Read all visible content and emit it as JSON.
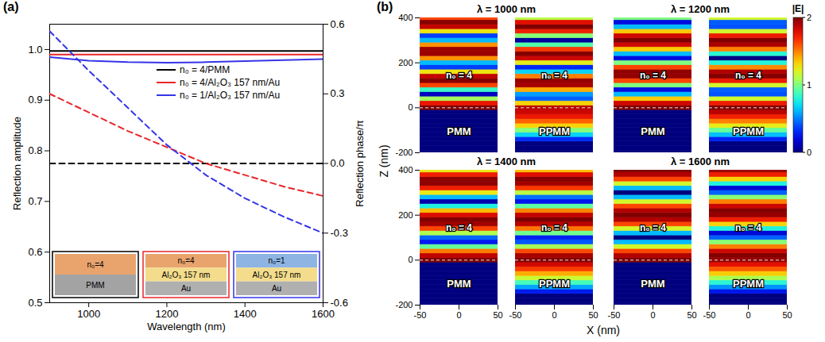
{
  "chart_data": [
    {
      "type": "line",
      "panel_label": "(a)",
      "xlabel": "Wavelength (nm)",
      "ylabel": "Reflection amplitude",
      "y2label": "Reflection phase/π",
      "x": [
        900,
        1000,
        1100,
        1200,
        1300,
        1400,
        1500,
        1600
      ],
      "xlim": [
        900,
        1600
      ],
      "xticks": [
        1000,
        1200,
        1400,
        1600
      ],
      "ylim": [
        0.5,
        1.05
      ],
      "yticks": [
        0.5,
        0.6,
        0.7,
        0.8,
        0.9,
        {
          "value": 1,
          "label": "1.0"
        }
      ],
      "y2lim": [
        -0.6,
        0.6
      ],
      "y2ticks": [
        -0.6,
        -0.3,
        {
          "value": 0,
          "label": "0.0"
        },
        0.3,
        0.6
      ],
      "legend": "upper right",
      "series": [
        {
          "name": "n₀ = 4/PMM",
          "color": "#000000",
          "line_style": "solid",
          "values": [
            0.997,
            0.997,
            0.997,
            0.997,
            0.997,
            0.997,
            0.997,
            0.997
          ]
        },
        {
          "name": "n₀ = 4/Al₂O₃ 157 nm/Au",
          "color": "#e8262a",
          "line_style": "solid",
          "values": [
            0.99,
            0.99,
            0.99,
            0.99,
            0.99,
            0.99,
            0.99,
            0.99
          ]
        },
        {
          "name": "n₀ = 1/Al₂O₃ 157 nm/Au",
          "color": "#3535e8",
          "line_style": "solid",
          "values": [
            0.985,
            0.978,
            0.975,
            0.974,
            0.975,
            0.977,
            0.979,
            0.981
          ]
        },
        {
          "name": "n₀ = 4/PMM",
          "color": "#000000",
          "line_style": "dashed",
          "axis": "y2",
          "values": [
            0,
            0,
            0,
            0,
            0,
            0,
            0,
            0
          ]
        },
        {
          "name": "n₀ = 4/Al₂O₃ 157 nm/Au",
          "color": "#e8262a",
          "line_style": "dashed",
          "axis": "y2",
          "values": [
            0.3,
            0.22,
            0.14,
            0.07,
            0.0,
            -0.05,
            -0.1,
            -0.14
          ]
        },
        {
          "name": "n₀ = 1/Al₂O₃ 157 nm/Au",
          "color": "#3535e8",
          "line_style": "dashed",
          "axis": "y2",
          "values": [
            0.57,
            0.4,
            0.24,
            0.08,
            -0.05,
            -0.15,
            -0.23,
            -0.3
          ]
        }
      ],
      "insets": [
        {
          "color": "#000000",
          "layers": [
            {
              "text": "n₀=4",
              "color": "#e9a46e"
            },
            {
              "text": "PMM",
              "color": "#a3a3a3"
            }
          ]
        },
        {
          "color": "#e8262a",
          "layers": [
            {
              "text": "n₀=4",
              "color": "#e9a46e"
            },
            {
              "text": "Al₂O₃ 157 nm",
              "color": "#f3dc8c"
            },
            {
              "text": "Au",
              "color": "#b0b0b0"
            }
          ]
        },
        {
          "color": "#3535e8",
          "layers": [
            {
              "text": "n₀=1",
              "color": "#8db4e2"
            },
            {
              "text": "Al₂O₃ 157 nm",
              "color": "#f3dc8c"
            },
            {
              "text": "Au",
              "color": "#b0b0b0"
            }
          ]
        }
      ]
    },
    {
      "type": "heatmap",
      "panel_label": "(b)",
      "xlabel": "X (nm)",
      "ylabel": "Z (nm)",
      "xlim": [
        -50,
        50
      ],
      "xticks": [
        -50,
        0,
        50
      ],
      "ylim": [
        -200,
        400
      ],
      "yticks": [
        -200,
        0,
        200,
        400
      ],
      "interface_z": 0,
      "colorbar": {
        "label": "|E|",
        "range": [
          0,
          2
        ],
        "ticks": [
          0,
          1,
          2
        ]
      },
      "z": [
        -200,
        -180,
        -160,
        -140,
        -120,
        -100,
        -80,
        -60,
        -40,
        -20,
        0,
        20,
        40,
        60,
        80,
        100,
        120,
        140,
        160,
        180,
        200,
        220,
        240,
        260,
        280,
        300,
        320,
        340,
        360,
        380,
        400
      ],
      "panels": [
        {
          "title": "λ = 1000 nm",
          "maps": [
            {
              "name": "PMM",
              "medium": "n₀ = 4",
              "values": [
                0,
                0,
                0,
                0,
                0,
                0,
                0,
                0,
                0,
                0,
                2,
                1.75,
                1.07,
                0.13,
                0.85,
                1.62,
                1.98,
                1.86,
                1.27,
                0.37,
                0.62,
                1.46,
                1.94,
                1.94,
                1.46,
                0.62,
                0.37,
                1.27,
                1.86,
                1.98,
                1.62
              ]
            },
            {
              "name": "PPMM",
              "medium": "n₀ = 4",
              "values": [
                0,
                0,
                0,
                0.32,
                0.68,
                1.02,
                1.32,
                1.56,
                1.74,
                1.84,
                1.88,
                1.32,
                0.44,
                0.56,
                1.41,
                1.92,
                1.95,
                1.5,
                0.68,
                0.31,
                1.23,
                1.84,
                1.99,
                1.65,
                0.91,
                0.06,
                1.02,
                1.72,
                2,
                1.78,
                1.12
              ]
            }
          ]
        },
        {
          "title": "λ = 1200 nm",
          "maps": [
            {
              "name": "PMM",
              "medium": "n₀ = 4",
              "values": [
                0,
                0,
                0,
                0,
                0,
                0,
                0,
                0,
                0,
                0,
                2,
                1.83,
                1.34,
                0.62,
                0.21,
                1.0,
                1.62,
                1.96,
                1.96,
                1.62,
                1.0,
                0.21,
                0.62,
                1.34,
                1.83,
                2,
                1.83,
                1.34,
                0.62,
                0.21,
                1.0
              ]
            },
            {
              "name": "PPMM",
              "medium": "n₀ = 4",
              "values": [
                0,
                0,
                0,
                0.29,
                0.63,
                0.95,
                1.24,
                1.5,
                1.71,
                1.88,
                1.99,
                1.73,
                1.17,
                0.41,
                0.43,
                1.18,
                1.74,
                1.99,
                1.9,
                1.48,
                0.8,
                0.01,
                0.82,
                1.49,
                1.91,
                1.99,
                1.73,
                1.17,
                0.41,
                0.43,
                1.18
              ]
            }
          ]
        },
        {
          "title": "λ = 1400 nm",
          "maps": [
            {
              "name": "PMM",
              "medium": "n₀ = 4",
              "values": [
                0,
                0,
                0,
                0,
                0,
                0,
                0,
                0,
                0,
                0,
                2,
                1.87,
                1.51,
                0.95,
                0.27,
                0.45,
                1.1,
                1.62,
                1.93,
                1.99,
                1.8,
                1.38,
                0.78,
                0.09,
                0.62,
                1.25,
                1.72,
                1.97,
                1.97,
                1.72,
                1.25
              ]
            },
            {
              "name": "PPMM",
              "medium": "n₀ = 4",
              "values": [
                0,
                0,
                0,
                0.27,
                0.58,
                0.88,
                1.16,
                1.41,
                1.64,
                1.83,
                1.99,
                1.92,
                1.61,
                1.08,
                0.42,
                0.29,
                0.97,
                1.52,
                1.88,
                2,
                1.86,
                1.49,
                0.93,
                0.25,
                0.47,
                1.12,
                1.65,
                1.93,
                1.99,
                1.79,
                1.37
              ]
            }
          ]
        },
        {
          "title": "λ = 1600 nm",
          "maps": [
            {
              "name": "PMM",
              "medium": "n₀ = 4",
              "values": [
                0,
                0,
                0,
                0,
                0,
                0,
                0,
                0,
                0,
                0,
                2,
                1.9,
                1.62,
                1.18,
                0.62,
                0,
                0.62,
                1.18,
                1.62,
                1.9,
                2,
                1.9,
                1.62,
                1.18,
                0.62,
                0,
                0.62,
                1.18,
                1.62,
                1.9,
                2
              ]
            },
            {
              "name": "PPMM",
              "medium": "n₀ = 4",
              "values": [
                0,
                0,
                0,
                0.25,
                0.54,
                0.82,
                1.09,
                1.34,
                1.57,
                1.77,
                1.95,
                1.99,
                1.84,
                1.5,
                1.02,
                0.44,
                0.19,
                0.79,
                1.32,
                1.72,
                1.95,
                1.99,
                1.84,
                1.5,
                1.02,
                0.44,
                0.19,
                0.79,
                1.32,
                1.72,
                1.95
              ]
            }
          ]
        }
      ]
    }
  ]
}
